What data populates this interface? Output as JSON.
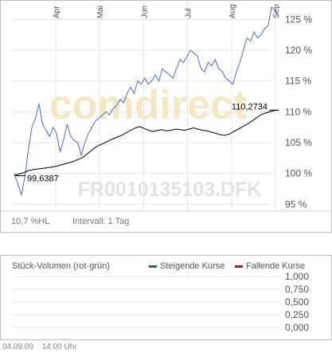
{
  "chart_data": [
    {
      "type": "line",
      "x_ticks": [
        "Apr",
        "Mai",
        "Jun",
        "Jul",
        "Aug",
        "Sep"
      ],
      "y_ticks": [
        "95 %",
        "100 %",
        "105 %",
        "110 %",
        "115 %",
        "120 %",
        "125 %"
      ],
      "ylim": [
        94,
        127
      ],
      "grid": true,
      "watermark_brand": "comdirect",
      "watermark_id": "FR0010135103.DFK",
      "series": [
        {
          "color": "#4a6fc7",
          "values": [
            100,
            98.3,
            96.5,
            99.5,
            104,
            107.5,
            109,
            111.3,
            108,
            107,
            106,
            107.5,
            106.5,
            103.5,
            105.5,
            108,
            106,
            105.3,
            105,
            103,
            105,
            106.5,
            107.5,
            108.5,
            109,
            109.5,
            110,
            109.5,
            110.5,
            111,
            112,
            111.5,
            113,
            114,
            113,
            115,
            114.5,
            115.5,
            114.5,
            115,
            116,
            115,
            117,
            116.5,
            116,
            115.5,
            117,
            118.5,
            118,
            119,
            120,
            119.5,
            119,
            117,
            116.5,
            118,
            117.5,
            118.5,
            117,
            116.5,
            115.5,
            115,
            114.5,
            116.5,
            118,
            120,
            122,
            121.5,
            123,
            122,
            122.5,
            123.5,
            124,
            127,
            126.5,
            125.5
          ]
        },
        {
          "color": "#000000",
          "values": [
            99.6387,
            99.9,
            100.1,
            100.4,
            100.6,
            100.7,
            100.8,
            100.9,
            101,
            101.1,
            101.3,
            101.5,
            101.7,
            101.9,
            102.2,
            102.5,
            103,
            103.6,
            104.2,
            104.6,
            104.9,
            105.3,
            105.6,
            105.9,
            106.2,
            106.6,
            107,
            107.4,
            107.6,
            107.3,
            107,
            106.8,
            107,
            107.1,
            106.9,
            107,
            107.2,
            107.1,
            107,
            107.2,
            107.4,
            107.2,
            107,
            106.9,
            106.7,
            106.5,
            106.3,
            106.2,
            106.4,
            106.8,
            107.2,
            107.6,
            108,
            108.5,
            109,
            109.5,
            109.8,
            110,
            110.2,
            110.2734
          ]
        }
      ],
      "annotations": {
        "start_value": "99,6387",
        "end_value": "110,2734"
      }
    },
    {
      "type": "line",
      "title": "Stück-Volumen (rot-grün)",
      "y_ticks": [
        "1,000",
        "0,750",
        "0,500",
        "0,250",
        "0,000"
      ],
      "ylim": [
        0,
        1
      ],
      "grid": true,
      "legend": [
        {
          "label": "Steigende Kurse",
          "color": "#1a7a2e"
        },
        {
          "label": "Fallende Kurse",
          "color": "#cc1111"
        }
      ]
    }
  ],
  "main_footer": {
    "hl": "10,7 %HL",
    "interval": "Intervall: 1 Tag"
  },
  "footer": {
    "date": "04.09.09",
    "time": "14:00 Uhr"
  }
}
